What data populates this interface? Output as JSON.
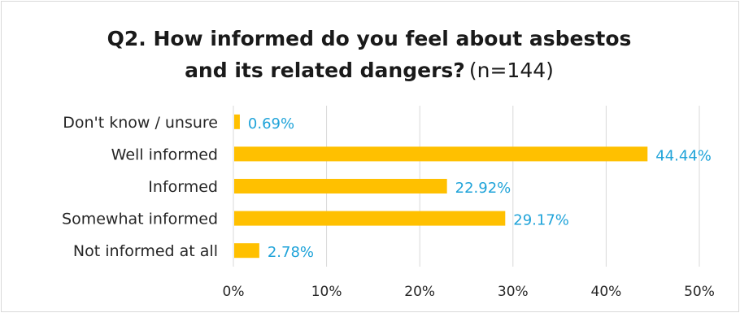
{
  "chart_data": {
    "type": "bar",
    "orientation": "horizontal",
    "title_line1": "Q2. How informed do you feel about asbestos",
    "title_line2": "and its related dangers?",
    "subtitle": "(n=144)",
    "categories": [
      "Don't know / unsure",
      "Well informed",
      "Informed",
      "Somewhat informed",
      "Not informed at all"
    ],
    "values": [
      0.69,
      44.44,
      22.92,
      29.17,
      2.78
    ],
    "value_labels": [
      "0.69%",
      "44.44%",
      "22.92%",
      "29.17%",
      "2.78%"
    ],
    "xticks": [
      "0%",
      "10%",
      "20%",
      "30%",
      "40%",
      "50%"
    ],
    "xlim": [
      0,
      50
    ],
    "grid": true,
    "bar_color": "#ffc000",
    "label_color": "#1fa3d9",
    "grid_color": "#d9d9d9"
  }
}
